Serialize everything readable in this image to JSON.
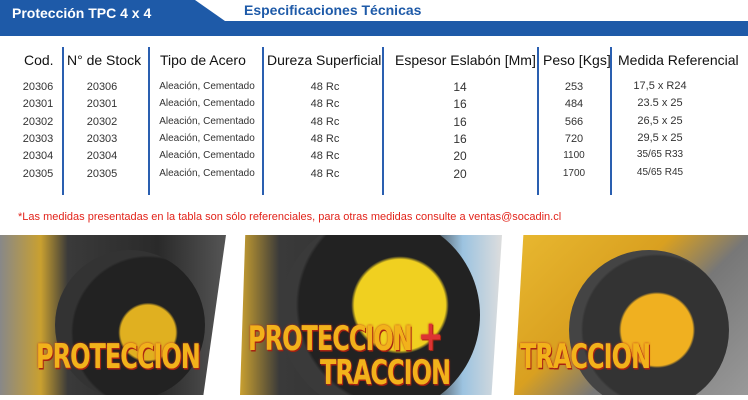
{
  "header": {
    "title": "Protección TPC  4 x 4",
    "section": "Especificaciones Técnicas",
    "accent": "#1e5aa8"
  },
  "table": {
    "columns": [
      "Cod.",
      "N° de Stock",
      "Tipo de Acero",
      "Dureza Superficial",
      "Espesor Eslabón [Mm]",
      "Peso [Kgs]",
      "Medida Referencial"
    ],
    "rows": [
      [
        "20306",
        "20306",
        "Aleación, Cementado",
        "48 Rc",
        "14",
        "253",
        "17,5 x R24"
      ],
      [
        "20301",
        "20301",
        "Aleación, Cementado",
        "48 Rc",
        "16",
        "484",
        "23.5 x 25"
      ],
      [
        "20302",
        "20302",
        "Aleación, Cementado",
        "48 Rc",
        "16",
        "566",
        "26,5 x 25"
      ],
      [
        "20303",
        "20303",
        "Aleación, Cementado",
        "48 Rc",
        "16",
        "720",
        "29,5 x 25"
      ],
      [
        "20304",
        "20304",
        "Aleación, Cementado",
        "48 Rc",
        "20",
        "1100",
        "35/65 R33"
      ],
      [
        "20305",
        "20305",
        "Aleación, Cementado",
        "48 Rc",
        "20",
        "1700",
        "45/65 R45"
      ]
    ]
  },
  "note": "*Las medidas presentadas en la tabla son sólo referenciales, para otras medidas consulte a ventas@socadin.cl",
  "photos": [
    {
      "label": "PROTECCION"
    },
    {
      "label": "PROTECCION",
      "label2": "TRACCION",
      "plus": "+"
    },
    {
      "label": "TRACCION"
    }
  ]
}
